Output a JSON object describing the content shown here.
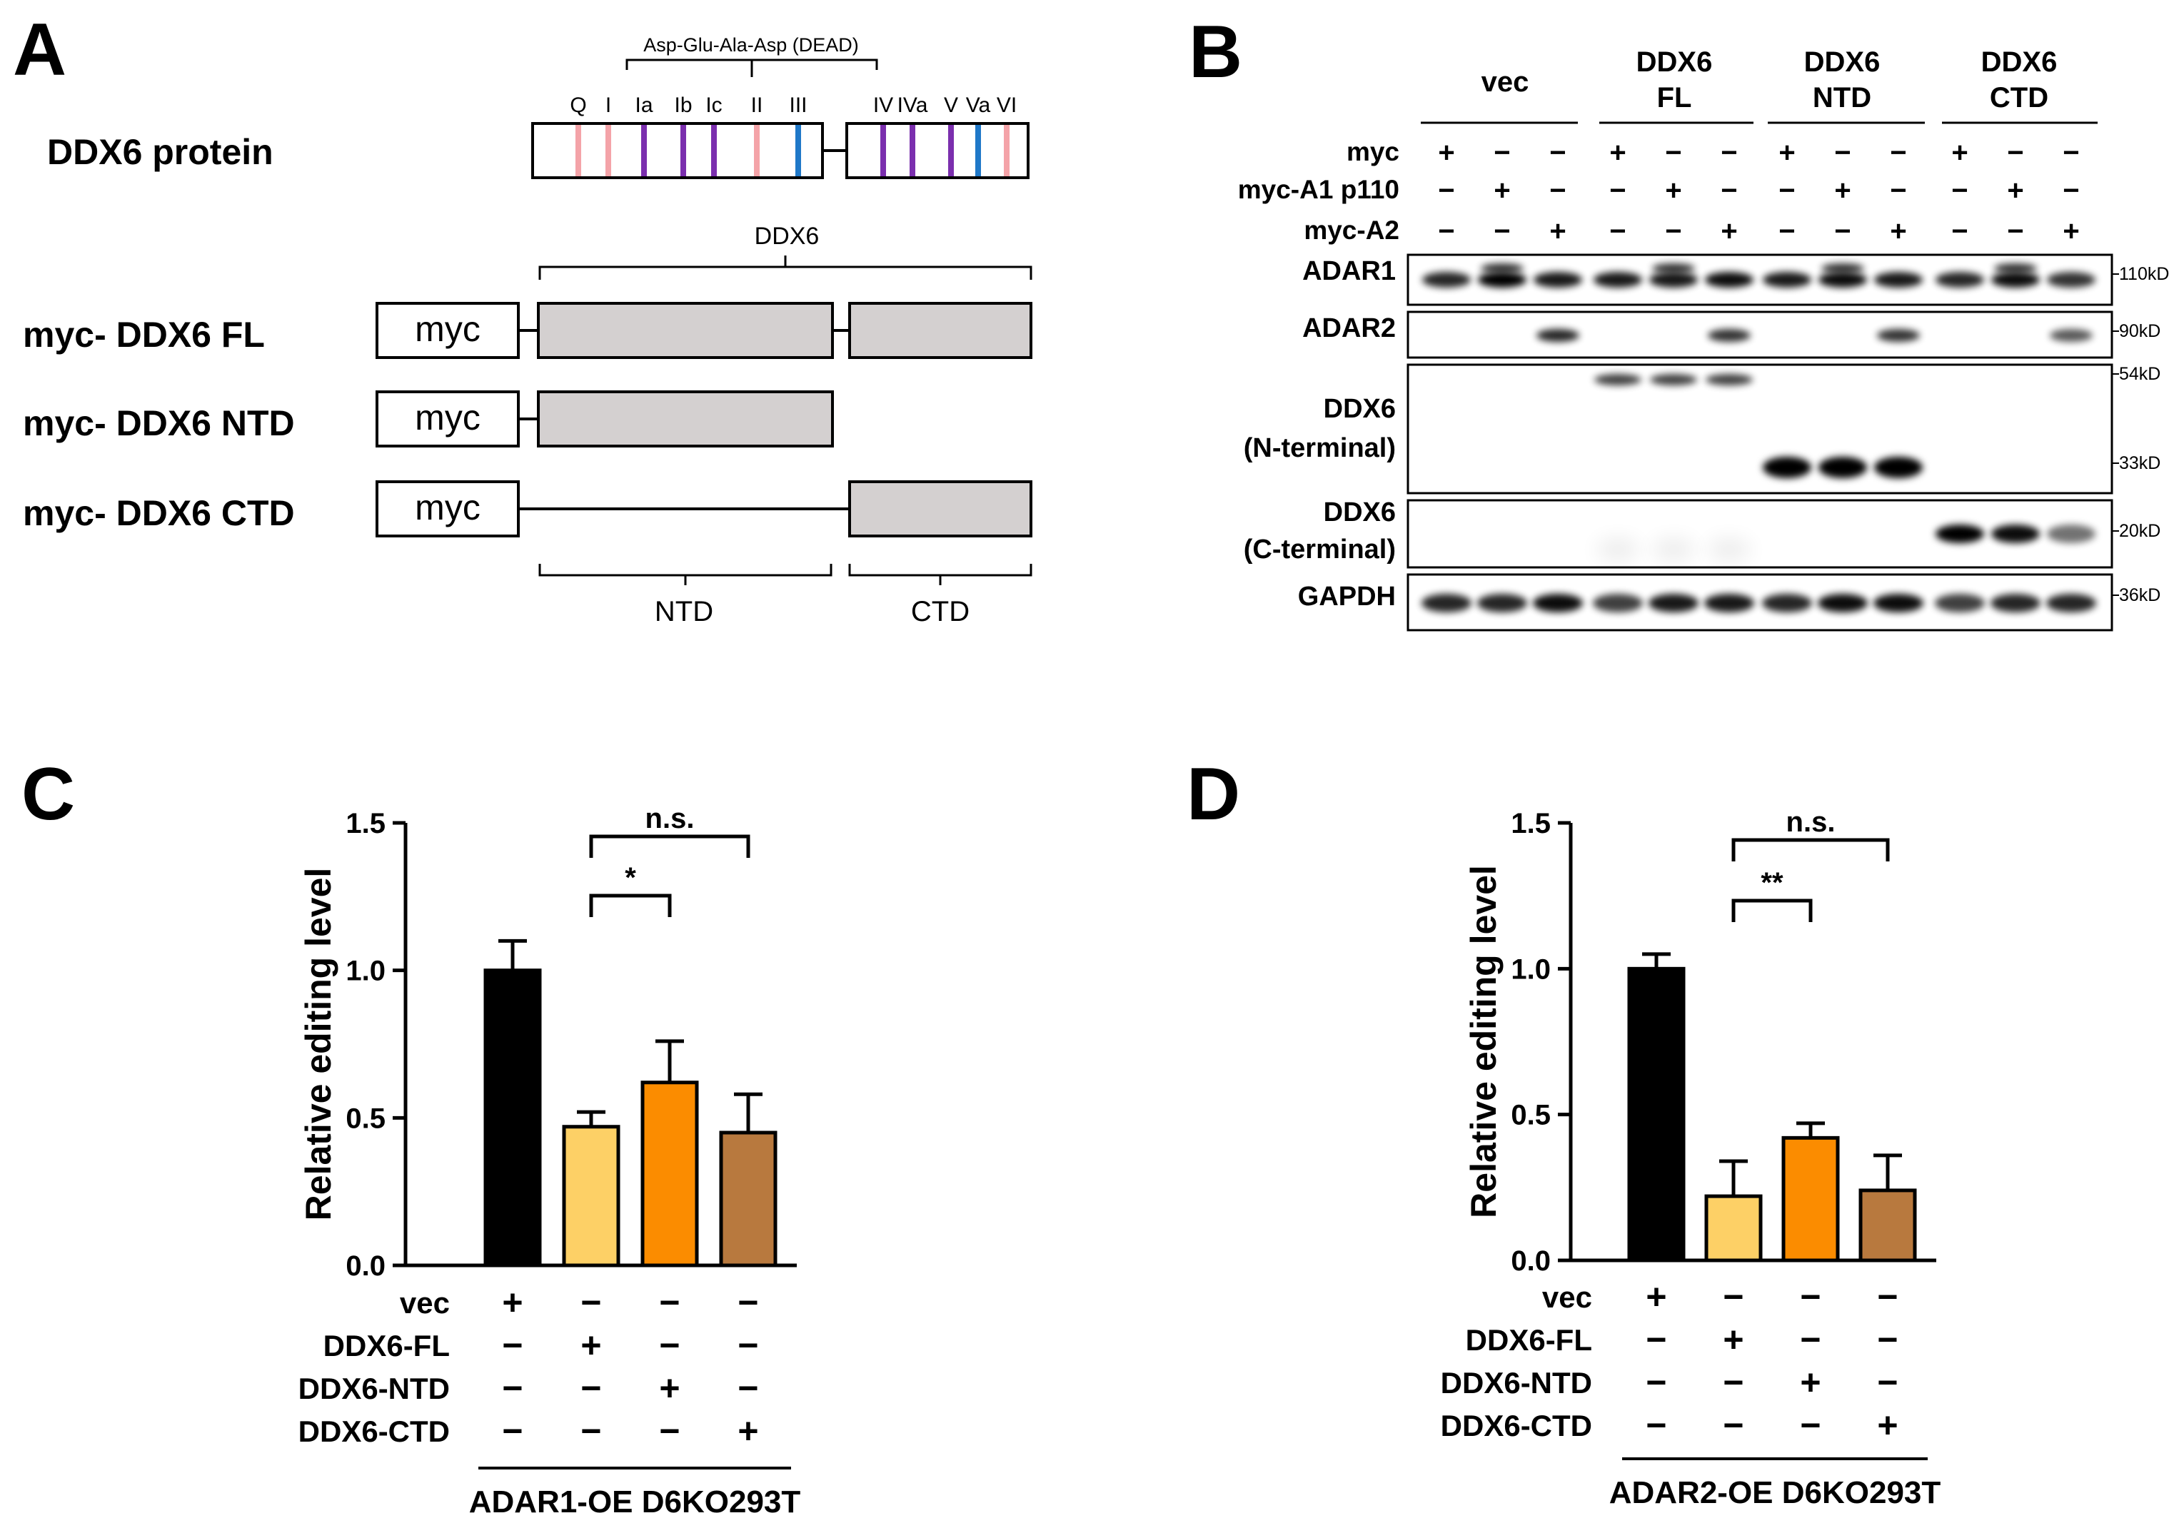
{
  "panels": {
    "A": {
      "letter": "A",
      "protein_label": "DDX6 protein",
      "motif_bracket_label": "Asp-Glu-Ala-Asp (DEAD)",
      "motifs": [
        {
          "name": "Q",
          "color": "#f4a3a8"
        },
        {
          "name": "I",
          "color": "#f4a3a8"
        },
        {
          "name": "Ia",
          "color": "#7b2fae"
        },
        {
          "name": "Ib",
          "color": "#7b2fae"
        },
        {
          "name": "Ic",
          "color": "#7b2fae"
        },
        {
          "name": "II",
          "color": "#f4a3a8"
        },
        {
          "name": "III",
          "color": "#1f78c8"
        },
        {
          "name": "IV",
          "color": "#7b2fae"
        },
        {
          "name": "IVa",
          "color": "#7b2fae"
        },
        {
          "name": "V",
          "color": "#7b2fae"
        },
        {
          "name": "Va",
          "color": "#1f78c8"
        },
        {
          "name": "VI",
          "color": "#f4a3a8"
        }
      ],
      "ddx6_label": "DDX6",
      "constructs": [
        {
          "label": "myc- DDX6 FL",
          "tag": "myc"
        },
        {
          "label": "myc- DDX6 NTD",
          "tag": "myc"
        },
        {
          "label": "myc- DDX6 CTD",
          "tag": "myc"
        }
      ],
      "ntd_label": "NTD",
      "ctd_label": "CTD"
    },
    "B": {
      "letter": "B",
      "groups": [
        {
          "line1": "vec",
          "line2": ""
        },
        {
          "line1": "DDX6",
          "line2": "FL"
        },
        {
          "line1": "DDX6",
          "line2": "NTD"
        },
        {
          "line1": "DDX6",
          "line2": "CTD"
        }
      ],
      "conditions": [
        {
          "label": "myc",
          "signs": [
            "+",
            "−",
            "−",
            "+",
            "−",
            "−",
            "+",
            "−",
            "−",
            "+",
            "−",
            "−"
          ]
        },
        {
          "label": "myc-A1 p110",
          "signs": [
            "−",
            "+",
            "−",
            "−",
            "+",
            "−",
            "−",
            "+",
            "−",
            "−",
            "+",
            "−"
          ]
        },
        {
          "label": "myc-A2",
          "signs": [
            "−",
            "−",
            "+",
            "−",
            "−",
            "+",
            "−",
            "−",
            "+",
            "−",
            "−",
            "+"
          ]
        }
      ],
      "blots": [
        {
          "label1": "ADAR1",
          "label2": "",
          "markers": [
            "110kD"
          ]
        },
        {
          "label1": "ADAR2",
          "label2": "",
          "markers": [
            "90kD"
          ]
        },
        {
          "label1": "DDX6",
          "label2": "(N-terminal)",
          "markers": [
            "54kD",
            "33kD"
          ]
        },
        {
          "label1": "DDX6",
          "label2": "(C-terminal)",
          "markers": [
            "20kD"
          ]
        },
        {
          "label1": "GAPDH",
          "label2": "",
          "markers": [
            "36kD"
          ]
        }
      ]
    },
    "C": {
      "letter": "C",
      "chart_data": {
        "type": "bar",
        "categories": [
          "vec",
          "DDX6-FL",
          "DDX6-NTD",
          "DDX6-CTD"
        ],
        "values": [
          1.0,
          0.47,
          0.62,
          0.45
        ],
        "errors": [
          0.1,
          0.05,
          0.14,
          0.13
        ],
        "colors": [
          "#000000",
          "#fdd066",
          "#fb8c00",
          "#b8793e"
        ],
        "ylabel": "Relative editing level",
        "ylim": [
          0,
          1.5
        ],
        "yticks": [
          "0.0",
          "0.5",
          "1.0",
          "1.5"
        ],
        "sig_near": "*",
        "sig_far": "n.s.",
        "condition_rows": [
          {
            "label": "vec",
            "signs": [
              "+",
              "−",
              "−",
              "−"
            ]
          },
          {
            "label": "DDX6-FL",
            "signs": [
              "−",
              "+",
              "−",
              "−"
            ]
          },
          {
            "label": "DDX6-NTD",
            "signs": [
              "−",
              "−",
              "+",
              "−"
            ]
          },
          {
            "label": "DDX6-CTD",
            "signs": [
              "−",
              "−",
              "−",
              "+"
            ]
          }
        ],
        "cell_line": "ADAR1-OE D6KO293T"
      }
    },
    "D": {
      "letter": "D",
      "chart_data": {
        "type": "bar",
        "categories": [
          "vec",
          "DDX6-FL",
          "DDX6-NTD",
          "DDX6-CTD"
        ],
        "values": [
          1.0,
          0.22,
          0.42,
          0.24
        ],
        "errors": [
          0.05,
          0.12,
          0.05,
          0.12
        ],
        "colors": [
          "#000000",
          "#fdd066",
          "#fb8c00",
          "#b8793e"
        ],
        "ylabel": "Relative editing level",
        "ylim": [
          0,
          1.5
        ],
        "yticks": [
          "0.0",
          "0.5",
          "1.0",
          "1.5"
        ],
        "sig_near": "**",
        "sig_far": "n.s.",
        "condition_rows": [
          {
            "label": "vec",
            "signs": [
              "+",
              "−",
              "−",
              "−"
            ]
          },
          {
            "label": "DDX6-FL",
            "signs": [
              "−",
              "+",
              "−",
              "−"
            ]
          },
          {
            "label": "DDX6-NTD",
            "signs": [
              "−",
              "−",
              "+",
              "−"
            ]
          },
          {
            "label": "DDX6-CTD",
            "signs": [
              "−",
              "−",
              "−",
              "+"
            ]
          }
        ],
        "cell_line": "ADAR2-OE D6KO293T"
      }
    }
  }
}
